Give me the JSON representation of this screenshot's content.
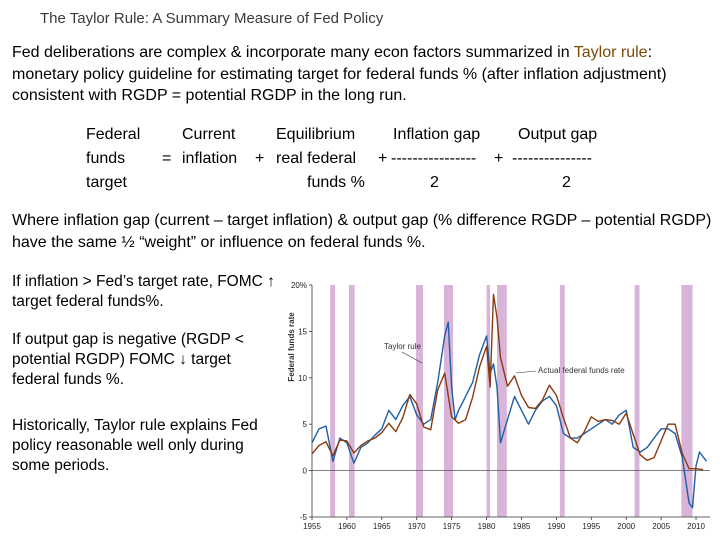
{
  "title": "The Taylor Rule: A Summary Measure of Fed Policy",
  "intro": {
    "part1": "Fed deliberations are complex & incorporate many econ factors summarized in",
    "term": "Taylor rule",
    "part2": ": monetary policy guideline for estimating target for federal funds % (after inflation adjustment) consistent with RGDP = potential RGDP in the long run."
  },
  "formula": {
    "lhs": [
      "Federal",
      "funds",
      "target"
    ],
    "eq": "=",
    "t1": [
      "Current",
      "inflation"
    ],
    "plus1": "+",
    "t2": [
      "Equilibrium",
      "real federal",
      "funds %"
    ],
    "plus2": "+",
    "t3_num": "Inflation gap",
    "t3_bar": "----------------",
    "t3_den": "2",
    "plus3": "+",
    "t4_num": "Output gap",
    "t4_bar": "---------------",
    "t4_den": "2"
  },
  "where": "Where inflation gap (current – target inflation) & output gap (% difference RGDP – potential RGDP) have the same ½ “weight” or influence on federal funds %.",
  "notes": [
    "If inflation > Fed’s target rate, FOMC ↑ target federal funds%.",
    "If output gap is negative (RGDP < potential RGDP) FOMC ↓ target federal funds %.",
    "Historically, Taylor rule explains Fed policy reasonable well only during some periods."
  ],
  "chart_data": {
    "type": "line",
    "ylabel": "Federal funds rate",
    "ylim": [
      -5,
      20
    ],
    "xlim": [
      1955,
      2012
    ],
    "x_ticks": [
      "1955",
      "1960",
      "1965",
      "1970",
      "1975",
      "1980",
      "1985",
      "1990",
      "1995",
      "2000",
      "2005",
      "2010"
    ],
    "y_ticks": [
      "20%",
      "15",
      "10",
      "5",
      "0",
      "-5"
    ],
    "y_tick_values": [
      20,
      15,
      10,
      5,
      0,
      -5
    ],
    "grid": false,
    "recessions": [
      [
        1957.6,
        1958.3
      ],
      [
        1960.3,
        1961.1
      ],
      [
        1969.9,
        1970.9
      ],
      [
        1973.9,
        1975.2
      ],
      [
        1980.0,
        1980.5
      ],
      [
        1981.5,
        1982.9
      ],
      [
        1990.5,
        1991.2
      ],
      [
        2001.2,
        2001.9
      ],
      [
        2007.9,
        2009.5
      ]
    ],
    "recession_color": "#d8b4d8",
    "series": [
      {
        "name": "Taylor rule",
        "color": "#1f5fa8",
        "x": [
          1955,
          1956,
          1957,
          1958,
          1959,
          1960,
          1961,
          1962,
          1963,
          1964,
          1965,
          1966,
          1967,
          1968,
          1969,
          1970,
          1971,
          1972,
          1973,
          1974,
          1974.5,
          1975,
          1975.5,
          1976,
          1977,
          1978,
          1979,
          1980,
          1980.5,
          1981,
          1981.5,
          1982,
          1983,
          1984,
          1985,
          1986,
          1987,
          1988,
          1989,
          1990,
          1991,
          1992,
          1993,
          1994,
          1995,
          1996,
          1997,
          1998,
          1999,
          2000,
          2001,
          2002,
          2003,
          2004,
          2005,
          2006,
          2007,
          2008,
          2008.5,
          2009,
          2009.5,
          2010,
          2010.5,
          2011,
          2011.5
        ],
        "values": [
          3.0,
          4.5,
          4.8,
          1.0,
          3.5,
          3.0,
          0.8,
          2.5,
          3.0,
          3.8,
          4.5,
          6.5,
          5.5,
          7.0,
          8.0,
          6.0,
          5.0,
          5.5,
          9.5,
          14.5,
          16.0,
          9.0,
          5.5,
          6.5,
          8.0,
          9.5,
          12.5,
          14.5,
          10.5,
          11.5,
          9.0,
          3.0,
          5.5,
          8.0,
          6.5,
          5.0,
          6.5,
          7.5,
          8.0,
          7.0,
          4.0,
          3.5,
          3.5,
          4.0,
          4.5,
          5.0,
          5.5,
          5.0,
          6.0,
          6.5,
          2.5,
          2.0,
          2.5,
          3.5,
          4.5,
          4.5,
          4.0,
          1.5,
          -1.0,
          -3.5,
          -4.0,
          0.5,
          2.0,
          1.5,
          1.0
        ]
      },
      {
        "name": "Actual federal funds rate",
        "color": "#8b3a10",
        "x": [
          1955,
          1956,
          1957,
          1958,
          1959,
          1960,
          1961,
          1962,
          1963,
          1964,
          1965,
          1966,
          1967,
          1968,
          1969,
          1970,
          1971,
          1972,
          1973,
          1974,
          1975,
          1976,
          1977,
          1978,
          1979,
          1980,
          1980.5,
          1981,
          1981.5,
          1982,
          1983,
          1984,
          1985,
          1986,
          1987,
          1988,
          1989,
          1990,
          1991,
          1992,
          1993,
          1994,
          1995,
          1996,
          1997,
          1998,
          1999,
          2000,
          2001,
          2002,
          2003,
          2004,
          2005,
          2006,
          2007,
          2008,
          2009,
          2010,
          2011
        ],
        "values": [
          1.8,
          2.7,
          3.1,
          1.6,
          3.3,
          3.2,
          1.9,
          2.7,
          3.2,
          3.5,
          4.1,
          5.1,
          4.2,
          5.7,
          8.2,
          7.2,
          4.7,
          4.4,
          8.7,
          10.5,
          5.8,
          5.1,
          5.5,
          7.9,
          11.2,
          13.4,
          9.0,
          19.0,
          16.5,
          12.2,
          9.1,
          10.2,
          8.1,
          6.8,
          6.7,
          7.6,
          9.2,
          8.1,
          5.7,
          3.5,
          3.0,
          4.2,
          5.8,
          5.3,
          5.5,
          5.4,
          5.0,
          6.2,
          3.9,
          1.7,
          1.1,
          1.4,
          3.2,
          5.0,
          5.0,
          1.9,
          0.2,
          0.2,
          0.1
        ]
      }
    ]
  }
}
